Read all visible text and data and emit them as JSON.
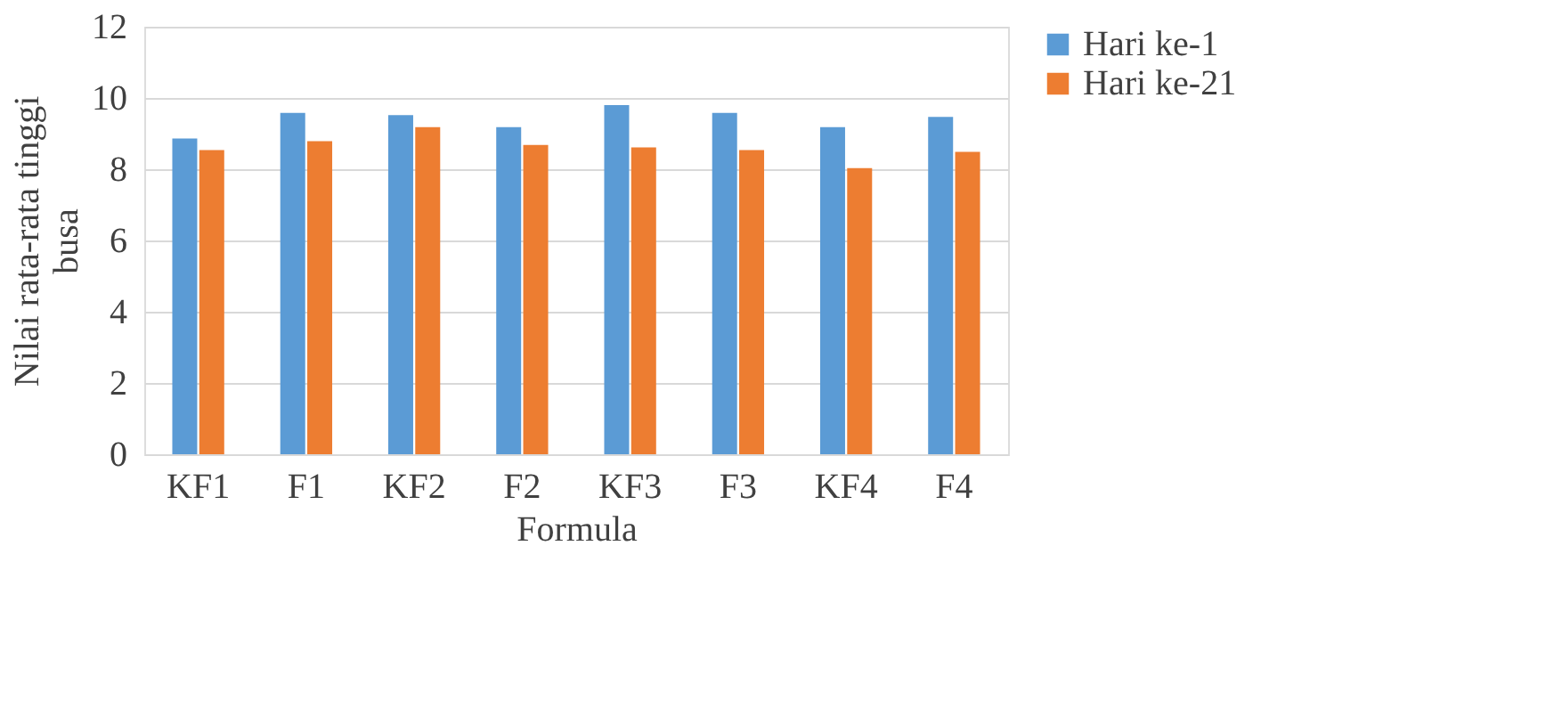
{
  "chart_data": {
    "type": "bar",
    "xlabel": "Formula",
    "ylabel": "Nilai rata-rata tinggi busa",
    "categories": [
      "KF1",
      "F1",
      "KF2",
      "F2",
      "KF3",
      "F3",
      "KF4",
      "F4"
    ],
    "series": [
      {
        "name": "Hari ke-1",
        "color": "#5b9bd5",
        "values": [
          8.86,
          9.58,
          9.52,
          9.18,
          9.8,
          9.58,
          9.18,
          9.47
        ]
      },
      {
        "name": "Hari ke-21",
        "color": "#ed7d31",
        "values": [
          8.54,
          8.79,
          9.18,
          8.68,
          8.61,
          8.54,
          8.03,
          8.49
        ]
      }
    ],
    "ylim": [
      0,
      12
    ],
    "yticks": [
      0,
      2,
      4,
      6,
      8,
      10,
      12
    ],
    "grid": "y",
    "legend": "right"
  }
}
